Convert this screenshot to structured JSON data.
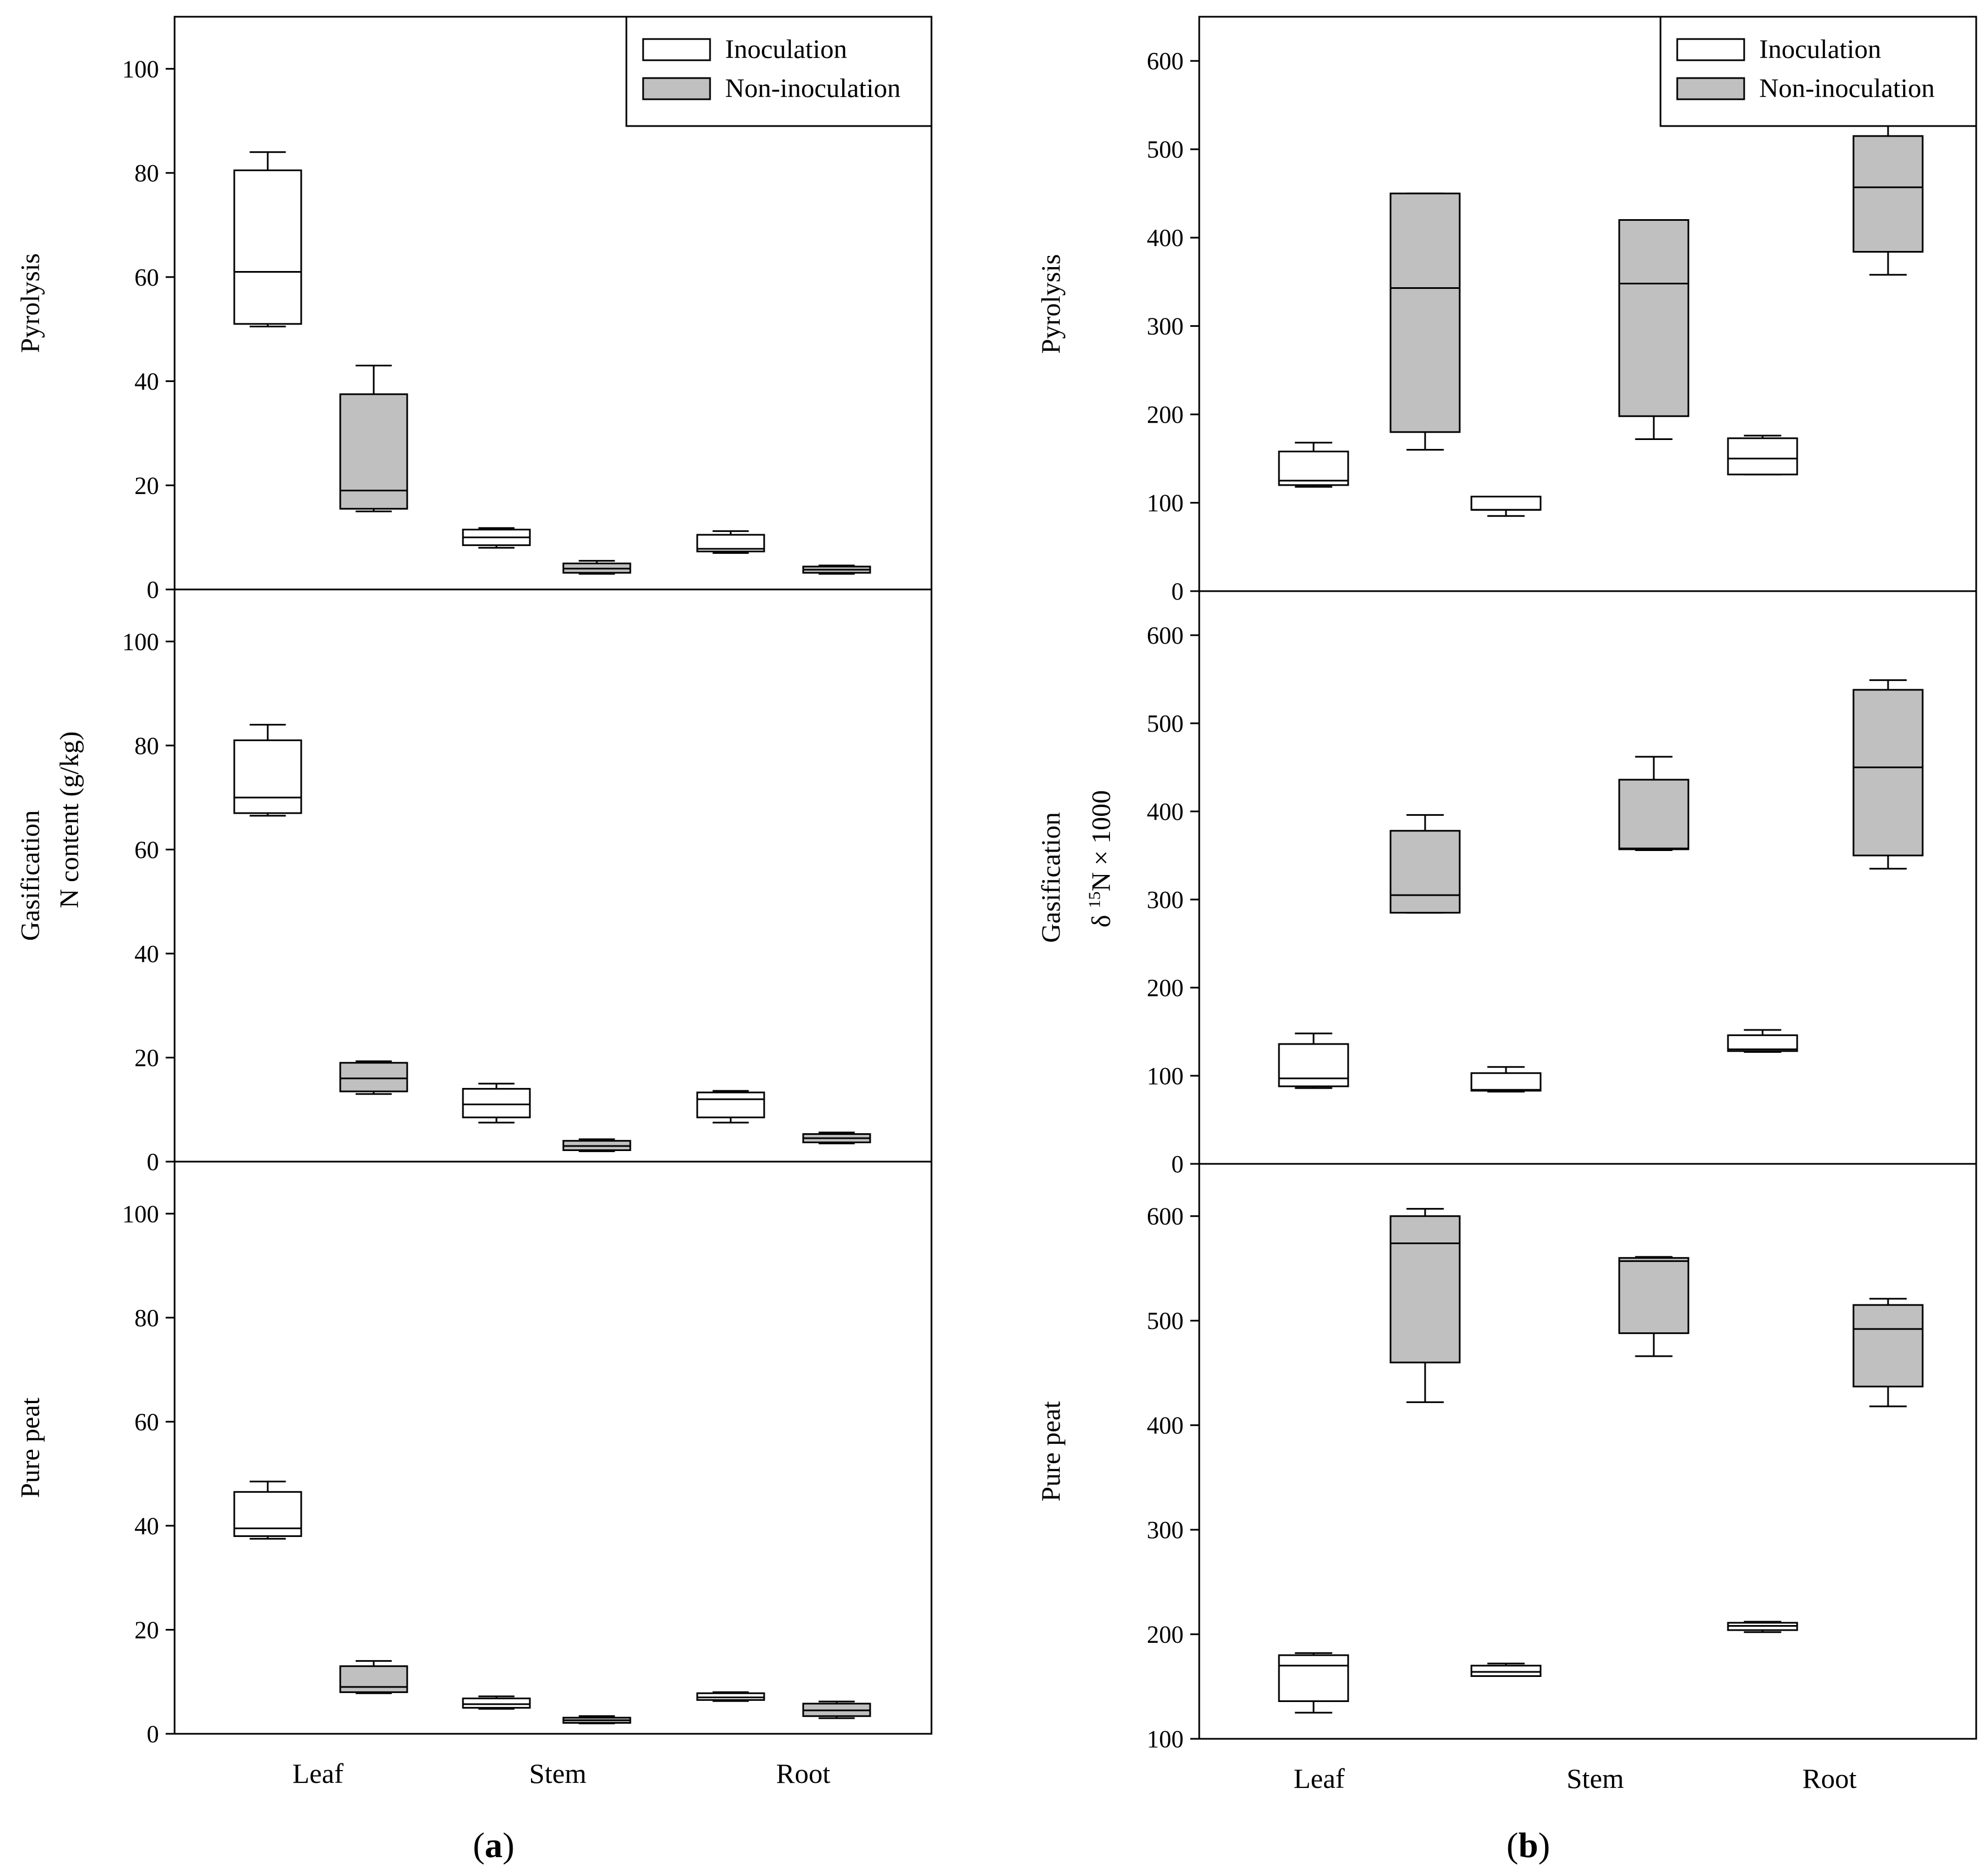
{
  "colors": {
    "inoculation": "#ffffff",
    "non_inoculation": "#c0c0c0",
    "stroke": "#000000"
  },
  "chart_data": [
    {
      "type": "boxplot",
      "panel": "a",
      "panel_label_open": "(",
      "panel_label_letter": "a",
      "panel_label_close": ")",
      "ylabel_shared": "N content (g/kg)",
      "categories": [
        "Leaf",
        "Stem",
        "Root"
      ],
      "legend": [
        "Inoculation",
        "Non-inoculation"
      ],
      "subplots": [
        {
          "label": "Pyrolysis",
          "ylim": [
            0,
            110
          ],
          "ticks": [
            0,
            20,
            40,
            60,
            80,
            100
          ],
          "boxes": [
            {
              "category": "Leaf",
              "series": "Inoculation",
              "whisker_low": 50.5,
              "q1": 51,
              "median": 61,
              "q3": 80.5,
              "whisker_high": 84
            },
            {
              "category": "Leaf",
              "series": "Non-inoculation",
              "whisker_low": 15,
              "q1": 15.5,
              "median": 19,
              "q3": 37.5,
              "whisker_high": 43
            },
            {
              "category": "Stem",
              "series": "Inoculation",
              "whisker_low": 8,
              "q1": 8.5,
              "median": 10,
              "q3": 11.5,
              "whisker_high": 11.8
            },
            {
              "category": "Stem",
              "series": "Non-inoculation",
              "whisker_low": 3,
              "q1": 3.2,
              "median": 4,
              "q3": 5,
              "whisker_high": 5.5
            },
            {
              "category": "Root",
              "series": "Inoculation",
              "whisker_low": 7,
              "q1": 7.3,
              "median": 7.8,
              "q3": 10.5,
              "whisker_high": 11.2
            },
            {
              "category": "Root",
              "series": "Non-inoculation",
              "whisker_low": 3,
              "q1": 3.2,
              "median": 3.8,
              "q3": 4.4,
              "whisker_high": 4.6
            }
          ]
        },
        {
          "label": "Gasification",
          "ylim": [
            0,
            110
          ],
          "ticks": [
            0,
            20,
            40,
            60,
            80,
            100
          ],
          "boxes": [
            {
              "category": "Leaf",
              "series": "Inoculation",
              "whisker_low": 66.5,
              "q1": 67,
              "median": 70,
              "q3": 81,
              "whisker_high": 84
            },
            {
              "category": "Leaf",
              "series": "Non-inoculation",
              "whisker_low": 13,
              "q1": 13.5,
              "median": 16,
              "q3": 19,
              "whisker_high": 19.3
            },
            {
              "category": "Stem",
              "series": "Inoculation",
              "whisker_low": 7.5,
              "q1": 8.5,
              "median": 11,
              "q3": 14,
              "whisker_high": 15
            },
            {
              "category": "Stem",
              "series": "Non-inoculation",
              "whisker_low": 2,
              "q1": 2.2,
              "median": 3,
              "q3": 4,
              "whisker_high": 4.3
            },
            {
              "category": "Root",
              "series": "Inoculation",
              "whisker_low": 7.5,
              "q1": 8.5,
              "median": 12,
              "q3": 13.3,
              "whisker_high": 13.6
            },
            {
              "category": "Root",
              "series": "Non-inoculation",
              "whisker_low": 3.5,
              "q1": 3.7,
              "median": 4.5,
              "q3": 5.3,
              "whisker_high": 5.6
            }
          ]
        },
        {
          "label": "Pure peat",
          "ylim": [
            0,
            110
          ],
          "ticks": [
            0,
            20,
            40,
            60,
            80,
            100
          ],
          "boxes": [
            {
              "category": "Leaf",
              "series": "Inoculation",
              "whisker_low": 37.5,
              "q1": 38,
              "median": 39.5,
              "q3": 46.5,
              "whisker_high": 48.5
            },
            {
              "category": "Leaf",
              "series": "Non-inoculation",
              "whisker_low": 7.8,
              "q1": 8,
              "median": 9,
              "q3": 13,
              "whisker_high": 14
            },
            {
              "category": "Stem",
              "series": "Inoculation",
              "whisker_low": 4.8,
              "q1": 5,
              "median": 5.7,
              "q3": 6.8,
              "whisker_high": 7.2
            },
            {
              "category": "Stem",
              "series": "Non-inoculation",
              "whisker_low": 2,
              "q1": 2.1,
              "median": 2.6,
              "q3": 3.1,
              "whisker_high": 3.4
            },
            {
              "category": "Root",
              "series": "Inoculation",
              "whisker_low": 6.3,
              "q1": 6.5,
              "median": 7,
              "q3": 7.8,
              "whisker_high": 8
            },
            {
              "category": "Root",
              "series": "Non-inoculation",
              "whisker_low": 3,
              "q1": 3.4,
              "median": 4.5,
              "q3": 5.8,
              "whisker_high": 6.2
            }
          ]
        }
      ]
    },
    {
      "type": "boxplot",
      "panel": "b",
      "panel_label_open": "(",
      "panel_label_letter": "b",
      "panel_label_close": ")",
      "ylabel_shared_prefix": "δ ",
      "ylabel_shared_sup": "15",
      "ylabel_shared_suffix": "N × 1000",
      "categories": [
        "Leaf",
        "Stem",
        "Root"
      ],
      "legend": [
        "Inoculation",
        "Non-inoculation"
      ],
      "subplots": [
        {
          "label": "Pyrolysis",
          "ylim": [
            0,
            650
          ],
          "ticks": [
            0,
            100,
            200,
            300,
            400,
            500,
            600
          ],
          "boxes": [
            {
              "category": "Leaf",
              "series": "Inoculation",
              "whisker_low": 118,
              "q1": 120,
              "median": 125,
              "q3": 158,
              "whisker_high": 168
            },
            {
              "category": "Leaf",
              "series": "Non-inoculation",
              "whisker_low": 160,
              "q1": 180,
              "median": 343,
              "q3": 450,
              "whisker_high": 450
            },
            {
              "category": "Stem",
              "series": "Inoculation",
              "whisker_low": 85,
              "q1": 92,
              "median": 92,
              "q3": 107,
              "whisker_high": 107
            },
            {
              "category": "Stem",
              "series": "Non-inoculation",
              "whisker_low": 172,
              "q1": 198,
              "median": 348,
              "q3": 420,
              "whisker_high": 420
            },
            {
              "category": "Root",
              "series": "Inoculation",
              "whisker_low": 132,
              "q1": 132,
              "median": 150,
              "q3": 173,
              "whisker_high": 176
            },
            {
              "category": "Root",
              "series": "Non-inoculation",
              "whisker_low": 358,
              "q1": 384,
              "median": 457,
              "q3": 515,
              "whisker_high": 530
            }
          ]
        },
        {
          "label": "Gasification",
          "ylim": [
            0,
            650
          ],
          "ticks": [
            0,
            100,
            200,
            300,
            400,
            500,
            600
          ],
          "boxes": [
            {
              "category": "Leaf",
              "series": "Inoculation",
              "whisker_low": 86,
              "q1": 88,
              "median": 97,
              "q3": 136,
              "whisker_high": 148
            },
            {
              "category": "Leaf",
              "series": "Non-inoculation",
              "whisker_low": 285,
              "q1": 285,
              "median": 305,
              "q3": 378,
              "whisker_high": 396
            },
            {
              "category": "Stem",
              "series": "Inoculation",
              "whisker_low": 82,
              "q1": 83,
              "median": 84,
              "q3": 103,
              "whisker_high": 110
            },
            {
              "category": "Stem",
              "series": "Non-inoculation",
              "whisker_low": 356,
              "q1": 357,
              "median": 358,
              "q3": 436,
              "whisker_high": 462
            },
            {
              "category": "Root",
              "series": "Inoculation",
              "whisker_low": 127,
              "q1": 128,
              "median": 130,
              "q3": 146,
              "whisker_high": 152
            },
            {
              "category": "Root",
              "series": "Non-inoculation",
              "whisker_low": 335,
              "q1": 350,
              "median": 450,
              "q3": 538,
              "whisker_high": 549
            }
          ]
        },
        {
          "label": "Pure peat",
          "ylim": [
            100,
            650
          ],
          "ticks": [
            100,
            200,
            300,
            400,
            500,
            600
          ],
          "boxes": [
            {
              "category": "Leaf",
              "series": "Inoculation",
              "whisker_low": 125,
              "q1": 136,
              "median": 170,
              "q3": 180,
              "whisker_high": 182
            },
            {
              "category": "Leaf",
              "series": "Non-inoculation",
              "whisker_low": 422,
              "q1": 460,
              "median": 574,
              "q3": 600,
              "whisker_high": 607
            },
            {
              "category": "Stem",
              "series": "Inoculation",
              "whisker_low": 160,
              "q1": 160,
              "median": 164,
              "q3": 170,
              "whisker_high": 172
            },
            {
              "category": "Stem",
              "series": "Non-inoculation",
              "whisker_low": 466,
              "q1": 488,
              "median": 557,
              "q3": 560,
              "whisker_high": 561
            },
            {
              "category": "Root",
              "series": "Inoculation",
              "whisker_low": 202,
              "q1": 204,
              "median": 208,
              "q3": 211,
              "whisker_high": 212
            },
            {
              "category": "Root",
              "series": "Non-inoculation",
              "whisker_low": 418,
              "q1": 437,
              "median": 492,
              "q3": 515,
              "whisker_high": 521
            }
          ]
        }
      ]
    }
  ]
}
